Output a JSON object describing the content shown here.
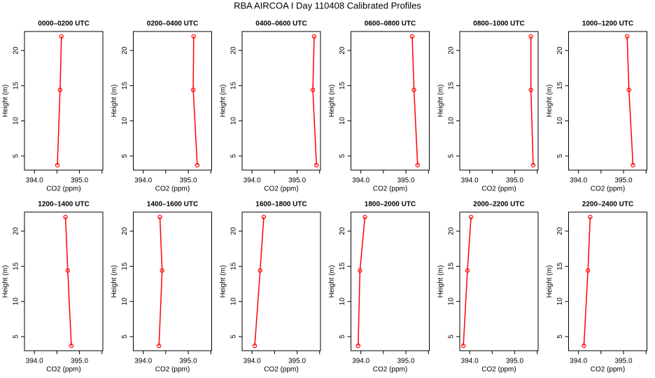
{
  "title": "RBA AIRCOA I  Day 110408  Calibrated Profiles",
  "chart_data": [
    {
      "type": "line",
      "title": "0000–0200 UTC",
      "xlabel": "CO2 (ppm)",
      "ylabel": "Height (m)",
      "color": "#ff0000",
      "x": [
        394.6,
        394.57,
        394.51
      ],
      "values": [
        22.0,
        14.4,
        3.7
      ],
      "xlim": [
        393.78,
        395.52
      ],
      "ylim": [
        3.0,
        22.7
      ],
      "xticks": [
        {
          "value": 394,
          "label": "394.0"
        },
        {
          "value": 394.5,
          "label": null
        },
        {
          "value": 395,
          "label": "395.0"
        },
        {
          "value": 395.5,
          "label": null
        }
      ],
      "yticks": [
        5,
        10,
        15,
        20
      ]
    },
    {
      "type": "line",
      "title": "0200–0400 UTC",
      "xlabel": "CO2 (ppm)",
      "ylabel": "Height (m)",
      "color": "#ff0000",
      "x": [
        395.12,
        395.11,
        395.2
      ],
      "values": [
        22.0,
        14.4,
        3.7
      ],
      "xlim": [
        393.78,
        395.52
      ],
      "ylim": [
        3.0,
        22.7
      ],
      "xticks": [
        {
          "value": 394,
          "label": "394.0"
        },
        {
          "value": 394.5,
          "label": null
        },
        {
          "value": 395,
          "label": "395.0"
        },
        {
          "value": 395.5,
          "label": null
        }
      ],
      "yticks": [
        5,
        10,
        15,
        20
      ]
    },
    {
      "type": "line",
      "title": "0400–0600 UTC",
      "xlabel": "CO2 (ppm)",
      "ylabel": "Height (m)",
      "color": "#ff0000",
      "x": [
        395.38,
        395.35,
        395.43
      ],
      "values": [
        22.0,
        14.4,
        3.7
      ],
      "xlim": [
        393.78,
        395.52
      ],
      "ylim": [
        3.0,
        22.7
      ],
      "xticks": [
        {
          "value": 394,
          "label": "394.0"
        },
        {
          "value": 394.5,
          "label": null
        },
        {
          "value": 395,
          "label": "395.0"
        },
        {
          "value": 395.5,
          "label": null
        }
      ],
      "yticks": [
        5,
        10,
        15,
        20
      ]
    },
    {
      "type": "line",
      "title": "0600–0800 UTC",
      "xlabel": "CO2 (ppm)",
      "ylabel": "Height (m)",
      "color": "#ff0000",
      "x": [
        395.14,
        395.18,
        395.26
      ],
      "values": [
        22.0,
        14.4,
        3.7
      ],
      "xlim": [
        393.78,
        395.52
      ],
      "ylim": [
        3.0,
        22.7
      ],
      "xticks": [
        {
          "value": 394,
          "label": "394.0"
        },
        {
          "value": 394.5,
          "label": null
        },
        {
          "value": 395,
          "label": "395.0"
        },
        {
          "value": 395.5,
          "label": null
        }
      ],
      "yticks": [
        5,
        10,
        15,
        20
      ]
    },
    {
      "type": "line",
      "title": "0800–1000 UTC",
      "xlabel": "CO2 (ppm)",
      "ylabel": "Height (m)",
      "color": "#ff0000",
      "x": [
        395.36,
        395.36,
        395.41
      ],
      "values": [
        22.0,
        14.4,
        3.7
      ],
      "xlim": [
        393.78,
        395.52
      ],
      "ylim": [
        3.0,
        22.7
      ],
      "xticks": [
        {
          "value": 394,
          "label": "394.0"
        },
        {
          "value": 394.5,
          "label": null
        },
        {
          "value": 395,
          "label": "395.0"
        },
        {
          "value": 395.5,
          "label": null
        }
      ],
      "yticks": [
        5,
        10,
        15,
        20
      ]
    },
    {
      "type": "line",
      "title": "1000–1200 UTC",
      "xlabel": "CO2 (ppm)",
      "ylabel": "Height (m)",
      "color": "#ff0000",
      "x": [
        395.08,
        395.12,
        395.21
      ],
      "values": [
        22.0,
        14.4,
        3.7
      ],
      "xlim": [
        393.78,
        395.52
      ],
      "ylim": [
        3.0,
        22.7
      ],
      "xticks": [
        {
          "value": 394,
          "label": "394.0"
        },
        {
          "value": 394.5,
          "label": null
        },
        {
          "value": 395,
          "label": "395.0"
        },
        {
          "value": 395.5,
          "label": null
        }
      ],
      "yticks": [
        5,
        10,
        15,
        20
      ]
    },
    {
      "type": "line",
      "title": "1200–1400 UTC",
      "xlabel": "CO2 (ppm)",
      "ylabel": "Height (m)",
      "color": "#ff0000",
      "x": [
        394.69,
        394.74,
        394.82
      ],
      "values": [
        22.0,
        14.4,
        3.7
      ],
      "xlim": [
        393.78,
        395.52
      ],
      "ylim": [
        3.0,
        22.7
      ],
      "xticks": [
        {
          "value": 394,
          "label": "394.0"
        },
        {
          "value": 394.5,
          "label": null
        },
        {
          "value": 395,
          "label": "395.0"
        },
        {
          "value": 395.5,
          "label": null
        }
      ],
      "yticks": [
        5,
        10,
        15,
        20
      ]
    },
    {
      "type": "line",
      "title": "1400–1600 UTC",
      "xlabel": "CO2 (ppm)",
      "ylabel": "Height (m)",
      "color": "#ff0000",
      "x": [
        394.37,
        394.42,
        394.35
      ],
      "values": [
        22.0,
        14.4,
        3.7
      ],
      "xlim": [
        393.78,
        395.52
      ],
      "ylim": [
        3.0,
        22.7
      ],
      "xticks": [
        {
          "value": 394,
          "label": "394.0"
        },
        {
          "value": 394.5,
          "label": null
        },
        {
          "value": 395,
          "label": "395.0"
        },
        {
          "value": 395.5,
          "label": null
        }
      ],
      "yticks": [
        5,
        10,
        15,
        20
      ]
    },
    {
      "type": "line",
      "title": "1600–1800 UTC",
      "xlabel": "CO2 (ppm)",
      "ylabel": "Height (m)",
      "color": "#ff0000",
      "x": [
        394.26,
        394.18,
        394.06
      ],
      "values": [
        22.0,
        14.4,
        3.7
      ],
      "xlim": [
        393.78,
        395.52
      ],
      "ylim": [
        3.0,
        22.7
      ],
      "xticks": [
        {
          "value": 394,
          "label": "394.0"
        },
        {
          "value": 394.5,
          "label": null
        },
        {
          "value": 395,
          "label": "395.0"
        },
        {
          "value": 395.5,
          "label": null
        }
      ],
      "yticks": [
        5,
        10,
        15,
        20
      ]
    },
    {
      "type": "line",
      "title": "1800–2000 UTC",
      "xlabel": "CO2 (ppm)",
      "ylabel": "Height (m)",
      "color": "#ff0000",
      "x": [
        394.09,
        393.98,
        393.94
      ],
      "values": [
        22.0,
        14.4,
        3.7
      ],
      "xlim": [
        393.78,
        395.52
      ],
      "ylim": [
        3.0,
        22.7
      ],
      "xticks": [
        {
          "value": 394,
          "label": "394.0"
        },
        {
          "value": 394.5,
          "label": null
        },
        {
          "value": 395,
          "label": "395.0"
        },
        {
          "value": 395.5,
          "label": null
        }
      ],
      "yticks": [
        5,
        10,
        15,
        20
      ]
    },
    {
      "type": "line",
      "title": "2000–2200 UTC",
      "xlabel": "CO2 (ppm)",
      "ylabel": "Height (m)",
      "color": "#ff0000",
      "x": [
        394.03,
        393.95,
        393.86
      ],
      "values": [
        22.0,
        14.4,
        3.7
      ],
      "xlim": [
        393.78,
        395.52
      ],
      "ylim": [
        3.0,
        22.7
      ],
      "xticks": [
        {
          "value": 394,
          "label": "394.0"
        },
        {
          "value": 394.5,
          "label": null
        },
        {
          "value": 395,
          "label": "395.0"
        },
        {
          "value": 395.5,
          "label": null
        }
      ],
      "yticks": [
        5,
        10,
        15,
        20
      ]
    },
    {
      "type": "line",
      "title": "2200–2400 UTC",
      "xlabel": "CO2 (ppm)",
      "ylabel": "Height (m)",
      "color": "#ff0000",
      "x": [
        394.26,
        394.21,
        394.12
      ],
      "values": [
        22.0,
        14.4,
        3.7
      ],
      "xlim": [
        393.78,
        395.52
      ],
      "ylim": [
        3.0,
        22.7
      ],
      "xticks": [
        {
          "value": 394,
          "label": "394.0"
        },
        {
          "value": 394.5,
          "label": null
        },
        {
          "value": 395,
          "label": "395.0"
        },
        {
          "value": 395.5,
          "label": null
        }
      ],
      "yticks": [
        5,
        10,
        15,
        20
      ]
    }
  ]
}
